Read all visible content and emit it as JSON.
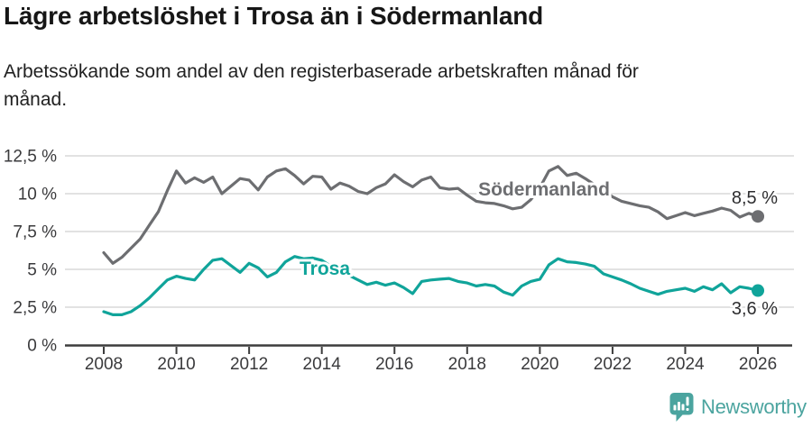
{
  "header": {
    "title": "Lägre arbetslöshet i Trosa än i Södermanland",
    "subtitle_line1": "Arbetssökande som andel av den registerbaserade arbetskraften månad för",
    "subtitle_line2": "månad."
  },
  "chart_data": {
    "type": "line",
    "title": "Lägre arbetslöshet i Trosa än i Södermanland",
    "subtitle": "Arbetssökande som andel av den registerbaserade arbetskraften månad för månad.",
    "grid": true,
    "legend_position": "inline-labels",
    "ylim": [
      0,
      12.5
    ],
    "x_start": 2008,
    "x_step": 0.25,
    "x_end": 2026,
    "y_unit": "%",
    "y_ticks": [
      {
        "value": 0,
        "label": "0 %"
      },
      {
        "value": 2.5,
        "label": "2,5 %"
      },
      {
        "value": 5,
        "label": "5 %"
      },
      {
        "value": 7.5,
        "label": "7,5 %"
      },
      {
        "value": 10,
        "label": "10 %"
      },
      {
        "value": 12.5,
        "label": "12,5 %"
      }
    ],
    "x_ticks": [
      {
        "year": 2008,
        "label": "2008"
      },
      {
        "year": 2010,
        "label": "2010"
      },
      {
        "year": 2012,
        "label": "2012"
      },
      {
        "year": 2014,
        "label": "2014"
      },
      {
        "year": 2016,
        "label": "2016"
      },
      {
        "year": 2018,
        "label": "2018"
      },
      {
        "year": 2020,
        "label": "2020"
      },
      {
        "year": 2022,
        "label": "2022"
      },
      {
        "year": 2024,
        "label": "2024"
      },
      {
        "year": 2026,
        "label": "2026"
      }
    ],
    "series": [
      {
        "name": "Södermanland",
        "color": "#6d6e71",
        "end_label": "8,5 %",
        "end_value": 8.5,
        "values": [
          6.1,
          5.4,
          5.8,
          6.4,
          7.0,
          7.9,
          8.8,
          10.2,
          11.5,
          10.7,
          11.05,
          10.75,
          11.1,
          10.0,
          10.5,
          11.0,
          10.9,
          10.25,
          11.1,
          11.5,
          11.65,
          11.2,
          10.65,
          11.15,
          11.1,
          10.3,
          10.7,
          10.5,
          10.15,
          10.0,
          10.4,
          10.65,
          11.25,
          10.8,
          10.45,
          10.9,
          11.1,
          10.4,
          10.3,
          10.35,
          9.9,
          9.5,
          9.4,
          9.35,
          9.2,
          9.0,
          9.1,
          9.6,
          10.4,
          11.5,
          11.8,
          11.2,
          11.35,
          11.0,
          10.6,
          10.2,
          9.8,
          9.5,
          9.35,
          9.2,
          9.1,
          8.8,
          8.35,
          8.55,
          8.75,
          8.55,
          8.7,
          8.85,
          9.05,
          8.9,
          8.45,
          8.7,
          8.5
        ]
      },
      {
        "name": "Trosa",
        "color": "#10a49a",
        "end_label": "3,6 %",
        "end_value": 3.6,
        "values": [
          2.2,
          2.0,
          2.0,
          2.2,
          2.6,
          3.1,
          3.7,
          4.3,
          4.55,
          4.4,
          4.3,
          5.0,
          5.6,
          5.7,
          5.25,
          4.8,
          5.4,
          5.1,
          4.5,
          4.8,
          5.5,
          5.85,
          5.7,
          5.75,
          5.6,
          5.2,
          4.9,
          4.6,
          4.3,
          4.0,
          4.15,
          3.95,
          4.1,
          3.8,
          3.4,
          4.2,
          4.3,
          4.35,
          4.4,
          4.2,
          4.1,
          3.9,
          4.0,
          3.9,
          3.5,
          3.3,
          3.9,
          4.2,
          4.35,
          5.3,
          5.7,
          5.5,
          5.45,
          5.35,
          5.2,
          4.7,
          4.5,
          4.3,
          4.05,
          3.75,
          3.55,
          3.35,
          3.55,
          3.65,
          3.75,
          3.55,
          3.85,
          3.65,
          4.05,
          3.45,
          3.85,
          3.75,
          3.6
        ]
      }
    ],
    "colors": {
      "grid": "#d9d9d9",
      "axis": "#3d3d3d",
      "tick_text": "#3a3a3c",
      "end_label_text": "#2d2d2f"
    }
  },
  "footer": {
    "brand": "Newsworthy",
    "brand_color": "#4ba49f"
  }
}
